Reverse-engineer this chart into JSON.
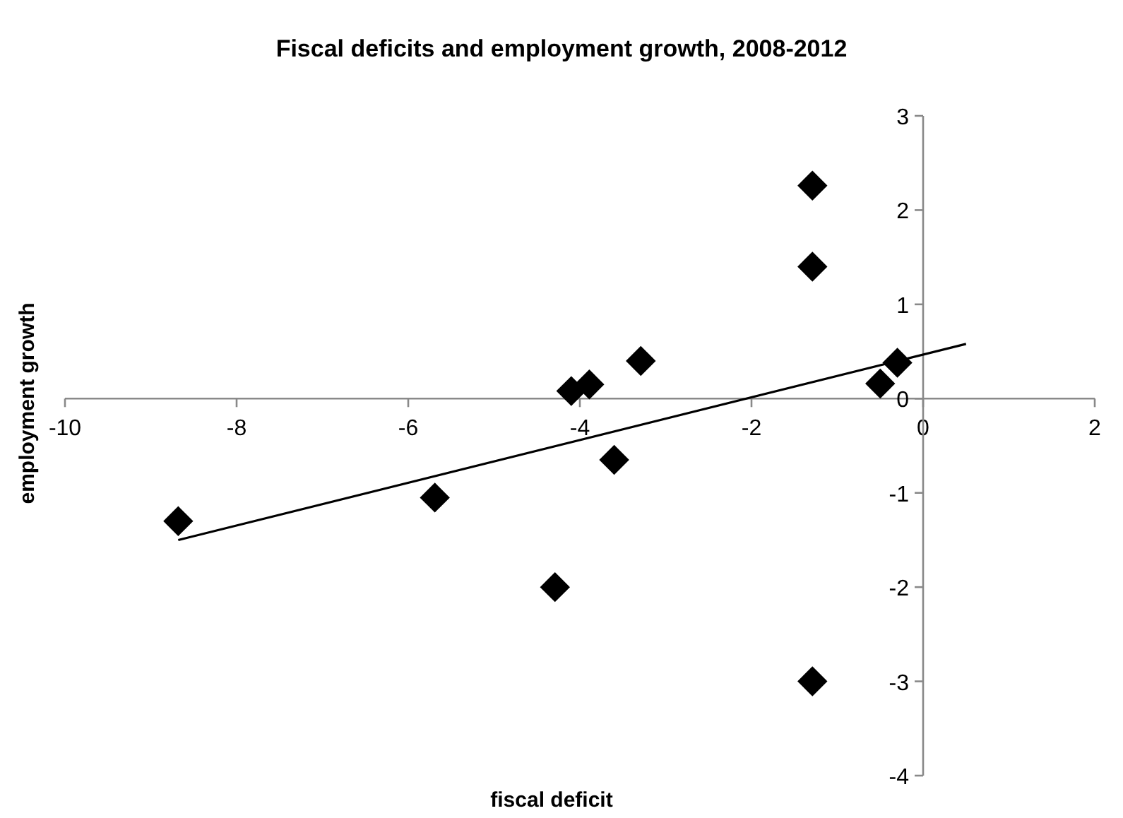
{
  "chart_data": {
    "type": "scatter",
    "title": "Fiscal deficits and employment growth, 2008-2012",
    "xlabel": "fiscal deficit",
    "ylabel": "employment growth",
    "xlim": [
      -10,
      2
    ],
    "xticks": [
      -10,
      -8,
      -6,
      -4,
      -2,
      0,
      2
    ],
    "ylim": [
      -4,
      3
    ],
    "yticks": [
      -4,
      -3,
      -2,
      -1,
      0,
      1,
      2,
      3
    ],
    "marker": "diamond",
    "series": [
      {
        "color": "#000000",
        "x": [
          -8.68,
          -5.69,
          -4.29,
          -4.1,
          -3.89,
          -3.6,
          -3.29,
          -1.29,
          -1.29,
          -1.29,
          -0.5,
          -0.3
        ],
        "values": [
          -1.3,
          -1.05,
          -2.0,
          0.08,
          0.15,
          -0.65,
          0.4,
          2.26,
          1.4,
          -3.0,
          0.16,
          0.38
        ]
      },
      {
        "type": "line",
        "color": "#000000",
        "marker": "none",
        "line_style": "solid",
        "x": [
          -8.68,
          0.5
        ],
        "values": [
          -1.5,
          0.58
        ]
      }
    ]
  }
}
